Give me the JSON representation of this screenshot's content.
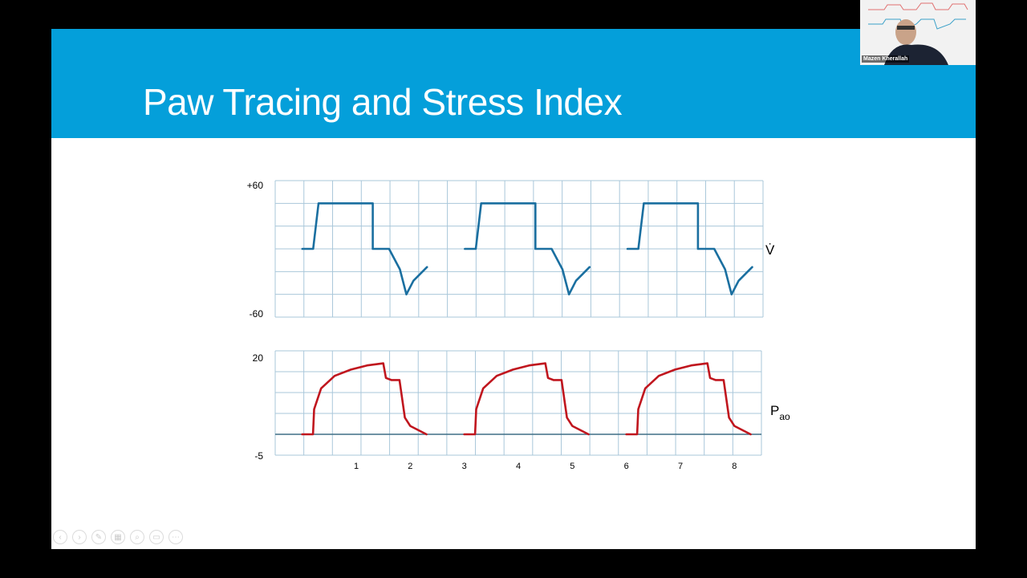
{
  "slide": {
    "title": "Paw Tracing and Stress Index"
  },
  "flow_plot": {
    "ymax_label": "+60",
    "ymin_label": "-60",
    "ylabel": "V̇",
    "color": "#1a6fa0"
  },
  "pressure_plot": {
    "ymax_label": "20",
    "ymin_label": "-5",
    "ylabel_main": "P",
    "ylabel_sub": "ao",
    "color": "#c0161e",
    "x_ticks": [
      "1",
      "2",
      "3",
      "4",
      "5",
      "6",
      "7",
      "8"
    ]
  },
  "chart_data": [
    {
      "type": "line",
      "series": [
        {
          "x": [
            0.0,
            0.2,
            0.3,
            1.3,
            1.3,
            1.6,
            1.8,
            1.92,
            2.05,
            2.3
          ],
          "values": [
            0,
            0,
            40,
            40,
            0,
            0,
            -18,
            -40,
            -28,
            -16
          ]
        }
      ],
      "ylim": [
        -60,
        60
      ],
      "xlim": [
        -0.5,
        8.5
      ]
    },
    {
      "type": "line",
      "series": [
        {
          "x": [
            0.0,
            0.2,
            0.22,
            0.35,
            0.6,
            0.9,
            1.2,
            1.5,
            1.55,
            1.65,
            1.8,
            1.9,
            2.0,
            2.3
          ],
          "values": [
            0,
            0,
            6,
            11,
            14,
            15.5,
            16.5,
            17,
            13.5,
            13,
            13,
            4,
            2,
            0
          ]
        }
      ],
      "ylim": [
        -5,
        20
      ],
      "xlim": [
        -0.5,
        8.5
      ]
    }
  ],
  "webcam": {
    "speaker_name": "Mazen Kherallah"
  },
  "nav_icons": [
    "back-icon",
    "forward-icon",
    "pen-icon",
    "slides-icon",
    "zoom-icon",
    "subtitle-icon",
    "more-icon"
  ]
}
